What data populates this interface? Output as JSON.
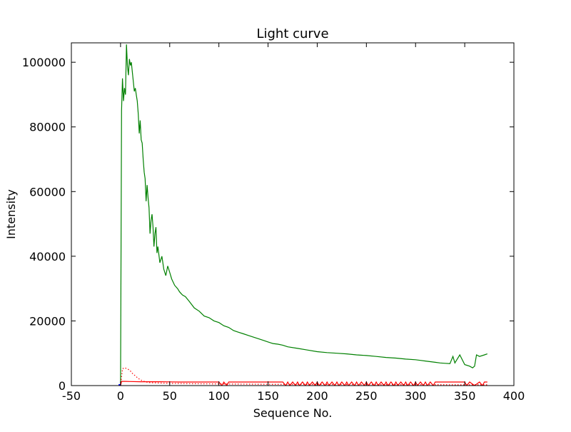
{
  "chart_data": {
    "type": "line",
    "title": "Light curve",
    "xlabel": "Sequence No.",
    "ylabel": "Intensity",
    "xlim": [
      -50,
      400
    ],
    "ylim": [
      0,
      106000
    ],
    "xticks": [
      -50,
      0,
      50,
      100,
      150,
      200,
      250,
      300,
      350,
      400
    ],
    "yticks": [
      0,
      20000,
      40000,
      60000,
      80000,
      100000
    ],
    "grid": false,
    "legend": null,
    "colors": {
      "green": "#008000",
      "red": "#ff0000",
      "blue": "#0000ff"
    },
    "series": [
      {
        "color": "#008000",
        "style": "solid",
        "x": [
          0,
          1,
          2,
          3,
          4,
          5,
          6,
          7,
          8,
          9,
          10,
          11,
          12,
          13,
          14,
          15,
          16,
          17,
          18,
          19,
          20,
          21,
          22,
          23,
          24,
          25,
          26,
          27,
          28,
          29,
          30,
          31,
          32,
          33,
          34,
          35,
          36,
          37,
          38,
          40,
          42,
          44,
          46,
          48,
          50,
          52,
          55,
          58,
          60,
          63,
          66,
          70,
          75,
          80,
          85,
          90,
          95,
          100,
          105,
          110,
          115,
          120,
          125,
          130,
          135,
          140,
          145,
          150,
          155,
          160,
          165,
          170,
          180,
          190,
          200,
          210,
          220,
          230,
          240,
          250,
          260,
          270,
          280,
          290,
          300,
          305,
          310,
          315,
          320,
          325,
          330,
          335,
          338,
          340,
          345,
          350,
          355,
          358,
          360,
          362,
          365,
          370,
          373
        ],
        "values": [
          0,
          85000,
          95000,
          88000,
          92000,
          90000,
          105500,
          99000,
          96000,
          101000,
          99000,
          100000,
          97000,
          94000,
          91000,
          92000,
          90000,
          88000,
          84000,
          78000,
          82000,
          76000,
          75000,
          70000,
          66000,
          64000,
          57000,
          62000,
          58000,
          55000,
          47000,
          51000,
          53000,
          49000,
          43000,
          47000,
          49000,
          41000,
          43000,
          38000,
          40000,
          36000,
          34000,
          37000,
          35000,
          33000,
          31000,
          30000,
          29000,
          28000,
          27500,
          26000,
          24000,
          23000,
          21500,
          21000,
          20000,
          19500,
          18500,
          18000,
          17000,
          16500,
          16000,
          15500,
          15000,
          14500,
          14000,
          13500,
          13000,
          12800,
          12500,
          12000,
          11500,
          11000,
          10500,
          10200,
          10000,
          9800,
          9500,
          9300,
          9000,
          8700,
          8500,
          8200,
          8000,
          7800,
          7600,
          7400,
          7200,
          7000,
          6900,
          6800,
          9000,
          7000,
          9500,
          6500,
          6000,
          5500,
          6000,
          9500,
          9000,
          9500,
          9800
        ]
      },
      {
        "color": "#ff0000",
        "style": "dotted",
        "x": [
          0,
          2,
          4,
          6,
          8,
          10,
          12,
          15,
          18,
          22,
          26,
          30,
          40,
          50,
          70,
          100,
          150,
          200,
          250,
          300,
          350,
          373
        ],
        "values": [
          0,
          5200,
          5500,
          5300,
          5000,
          4500,
          3800,
          3000,
          2200,
          1500,
          1100,
          900,
          800,
          700,
          600,
          500,
          400,
          350,
          300,
          300,
          250,
          250
        ]
      },
      {
        "color": "#ff0000",
        "style": "solid",
        "x": [
          0,
          1,
          5,
          10,
          20,
          30,
          40,
          50,
          60,
          80,
          100,
          103,
          105,
          108,
          110,
          130,
          150,
          165,
          168,
          170,
          172,
          175,
          178,
          180,
          182,
          185,
          188,
          190,
          192,
          195,
          198,
          200,
          202,
          205,
          208,
          210,
          212,
          215,
          218,
          220,
          222,
          225,
          228,
          230,
          232,
          235,
          238,
          240,
          242,
          245,
          248,
          250,
          252,
          255,
          258,
          260,
          262,
          265,
          268,
          270,
          272,
          275,
          278,
          280,
          282,
          285,
          288,
          290,
          292,
          295,
          298,
          300,
          302,
          305,
          308,
          310,
          312,
          315,
          318,
          320,
          325,
          330,
          335,
          340,
          345,
          350,
          352,
          355,
          360,
          365,
          368,
          370,
          373
        ],
        "values": [
          0,
          1300,
          1300,
          1250,
          1200,
          1200,
          1200,
          1150,
          1100,
          1100,
          1100,
          0,
          1100,
          0,
          1100,
          1100,
          1100,
          1100,
          0,
          1100,
          0,
          1100,
          0,
          1100,
          0,
          1100,
          0,
          1100,
          0,
          1100,
          0,
          1100,
          0,
          1100,
          0,
          1100,
          0,
          1100,
          0,
          1100,
          0,
          1100,
          0,
          1100,
          0,
          1100,
          0,
          1100,
          0,
          1100,
          0,
          1100,
          0,
          1100,
          0,
          1100,
          0,
          1100,
          0,
          1100,
          0,
          1100,
          0,
          1100,
          0,
          1100,
          0,
          1100,
          0,
          1100,
          0,
          1100,
          0,
          1100,
          0,
          1100,
          0,
          1100,
          0,
          1100,
          1100,
          1100,
          1100,
          1100,
          1100,
          1100,
          0,
          1100,
          0,
          1100,
          0,
          1100,
          1100
        ]
      },
      {
        "color": "#0000ff",
        "style": "solid",
        "x": [
          -2,
          0
        ],
        "values": [
          0,
          0
        ]
      }
    ]
  }
}
